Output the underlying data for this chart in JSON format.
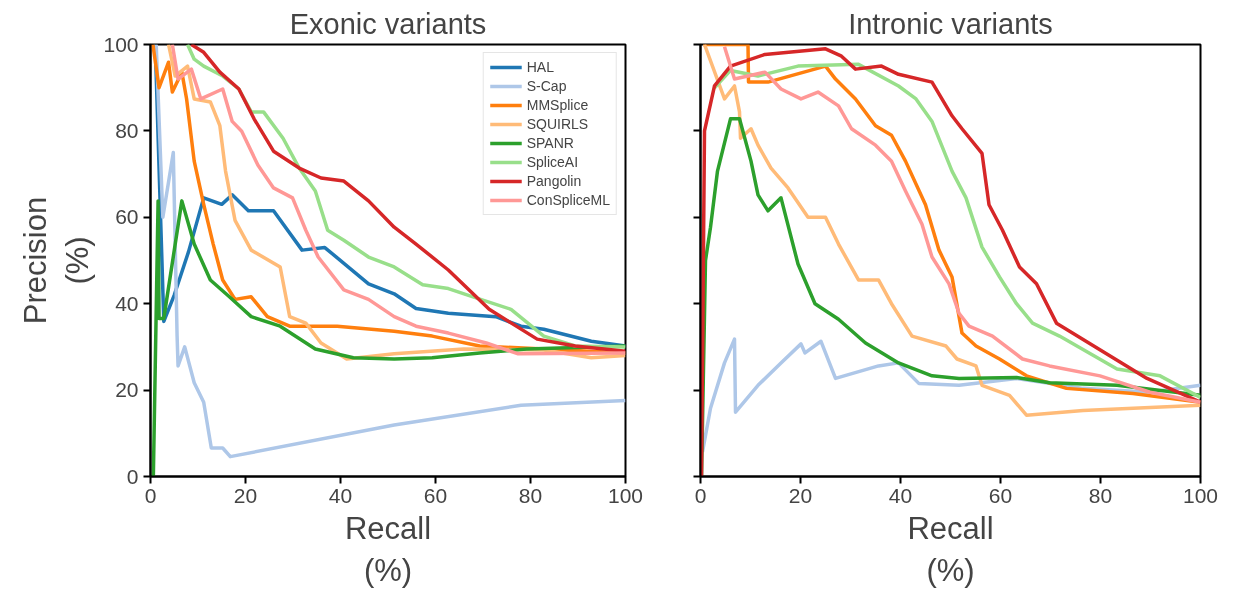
{
  "chart_data": [
    {
      "type": "line",
      "title": "Exonic variants",
      "xlabel": "Recall\n(%)",
      "ylabel": "Precision\n(%)",
      "xlim": [
        0,
        100
      ],
      "ylim": [
        0,
        100
      ],
      "xticks": [
        0,
        20,
        40,
        60,
        80,
        100
      ],
      "yticks": [
        0,
        20,
        40,
        60,
        80,
        100
      ],
      "grid": false,
      "legend": "top right",
      "series": [
        {
          "name": "HAL",
          "color": "#1f77b4",
          "x": [
            1,
            2.8,
            5,
            8,
            11.2,
            15,
            17.2,
            20.6,
            25.9,
            31.9,
            36.7,
            45.9,
            51.3,
            55.9,
            62.7,
            72.7,
            78,
            82.8,
            92.8,
            100
          ],
          "values": [
            100,
            35.9,
            42,
            52,
            64.5,
            63,
            65.2,
            61.5,
            61.5,
            52.4,
            53,
            44.6,
            42.3,
            38.9,
            37.8,
            37,
            34.8,
            34.1,
            31.3,
            30.2
          ]
        },
        {
          "name": "S-Cap",
          "color": "#aec7e8",
          "x": [
            1.2,
            2.6,
            4.8,
            5.6,
            5.8,
            7.2,
            9.2,
            11.2,
            12.8,
            15.2,
            16.8,
            51.3,
            78,
            100
          ],
          "values": [
            100,
            60,
            75,
            32.5,
            25.6,
            30,
            21.7,
            17.2,
            6.6,
            6.6,
            4.6,
            11.9,
            16.5,
            17.6
          ]
        },
        {
          "name": "MMSplice",
          "color": "#ff7f0e",
          "x": [
            0.5,
            1.8,
            3.8,
            4.6,
            6.6,
            7.6,
            9.2,
            11.2,
            13.2,
            15.2,
            17.8,
            21.2,
            24.6,
            29.3,
            39.3,
            51.3,
            59.3,
            69.3,
            82.8,
            100
          ],
          "values": [
            100,
            90,
            95.9,
            89,
            93.6,
            87.4,
            73,
            63,
            53.8,
            45.5,
            41,
            41.6,
            37,
            34.8,
            34.8,
            33.6,
            32.5,
            30.2,
            29.5,
            28.6
          ]
        },
        {
          "name": "SQUIRLS",
          "color": "#ffbb78",
          "x": [
            3.8,
            5.2,
            7.8,
            9.2,
            12.6,
            14.6,
            15.8,
            17.8,
            21.2,
            27.3,
            29.3,
            32.7,
            35.9,
            41.3,
            51.3,
            65.9,
            82.8,
            92.8,
            100
          ],
          "values": [
            100,
            92.7,
            95,
            87.4,
            86.7,
            81.2,
            70.7,
            59.3,
            52.4,
            48.5,
            37,
            35.5,
            30.9,
            27.2,
            28.4,
            29.5,
            29.3,
            27.5,
            28
          ]
        },
        {
          "name": "SPANR",
          "color": "#2ca02c",
          "x": [
            0.6,
            1.6,
            1.8,
            2.8,
            6.6,
            9.2,
            12.6,
            16.6,
            21.2,
            27.3,
            34.7,
            42.7,
            51.3,
            59.3,
            69.3,
            79.2,
            100
          ],
          "values": [
            0,
            63.8,
            36.6,
            36.6,
            63.8,
            53.8,
            45.5,
            41.6,
            37,
            34.8,
            29.5,
            27.5,
            27.2,
            27.5,
            28.6,
            29.5,
            30.2
          ]
        },
        {
          "name": "SpliceAI",
          "color": "#98df8a",
          "x": [
            7.8,
            9.2,
            11.2,
            15.2,
            18.6,
            21.2,
            23.8,
            27.9,
            31.3,
            34.7,
            37.3,
            40.7,
            45.9,
            51.3,
            57.3,
            62.7,
            67.9,
            75.9,
            82.8,
            89.4,
            100
          ],
          "values": [
            100,
            96.6,
            95,
            92.7,
            89.7,
            84.4,
            84.4,
            78.3,
            71.4,
            66.1,
            57,
            54.7,
            50.8,
            48.5,
            44.4,
            43.5,
            41.6,
            38.7,
            32.5,
            30.2,
            30
          ]
        },
        {
          "name": "Pangolin",
          "color": "#d62728",
          "x": [
            8.6,
            11.2,
            14.6,
            18.6,
            21.8,
            25.9,
            31.3,
            35.9,
            40.7,
            45.9,
            51.3,
            55.9,
            62.7,
            71.3,
            81.4,
            89.4,
            100
          ],
          "values": [
            100,
            98.2,
            93.6,
            89.7,
            82.8,
            75.3,
            71.4,
            69.1,
            68.4,
            63.8,
            57.7,
            53.8,
            47.8,
            38.7,
            31.8,
            30.2,
            29
          ]
        },
        {
          "name": "ConSpliceML",
          "color": "#ff9896",
          "x": [
            4.6,
            5.8,
            8.6,
            10.6,
            15.2,
            17.2,
            19.2,
            22.6,
            25.9,
            29.9,
            32.7,
            35.3,
            40.7,
            45.9,
            51.3,
            55.9,
            62.7,
            70.7,
            77.4,
            100
          ],
          "values": [
            100,
            92,
            94.3,
            87.4,
            89.7,
            82.2,
            79.9,
            72.1,
            66.8,
            64.5,
            57,
            50.8,
            43.2,
            41,
            37,
            34.8,
            33.2,
            30.9,
            28.4,
            28.6
          ]
        }
      ]
    },
    {
      "type": "line",
      "title": "Intronic variants",
      "xlabel": "Recall\n(%)",
      "xlim": [
        0,
        100
      ],
      "ylim": [
        0,
        100
      ],
      "xticks": [
        0,
        20,
        40,
        60,
        80,
        100
      ],
      "yticks": [
        0,
        20,
        40,
        60,
        80,
        100
      ],
      "grid": false,
      "tick_labels": "x",
      "series": [
        {
          "color": "#aec7e8",
          "x": [
            0.4,
            2,
            4.8,
            6.8,
            7,
            11.5,
            16.1,
            20.1,
            20.9,
            24.1,
            27,
            35.6,
            39.6,
            43.7,
            51.7,
            63.2,
            76.5,
            89.9,
            100
          ],
          "values": [
            5.7,
            15.8,
            26.3,
            31.8,
            14.9,
            21.1,
            26.3,
            30.7,
            28.6,
            31.3,
            22.7,
            25.6,
            26.3,
            21.5,
            21.1,
            22.7,
            20.4,
            19.5,
            21.1
          ]
        },
        {
          "color": "#ff7f0e",
          "x": [
            0.5,
            9.5,
            9.6,
            13.5,
            25,
            27,
            31,
            35,
            38.2,
            41,
            45,
            47.7,
            50.3,
            52.3,
            55.1,
            59.8,
            65.2,
            73.2,
            86.5,
            100
          ],
          "values": [
            100,
            100,
            91.3,
            91.3,
            95,
            92,
            87.4,
            81.2,
            79,
            73,
            62.9,
            52.4,
            46.2,
            33.2,
            30.2,
            27.2,
            23.3,
            20.4,
            19.2,
            17.2
          ]
        },
        {
          "color": "#ffbb78",
          "x": [
            0.8,
            4.8,
            6.8,
            7.8,
            8,
            10.1,
            11.5,
            14.1,
            17.5,
            21.5,
            25,
            27.6,
            31.6,
            35.6,
            38.2,
            42.3,
            49.1,
            51.3,
            55.1,
            56.3,
            61.8,
            65.2,
            76.5,
            100
          ],
          "values": [
            100,
            87.4,
            90.4,
            84.4,
            78.3,
            80.5,
            76.7,
            71.4,
            66.8,
            60,
            60,
            53.8,
            45.5,
            45.5,
            40,
            32.5,
            30.2,
            27.2,
            25.6,
            21.1,
            18.8,
            14.2,
            15.3,
            16.5
          ]
        },
        {
          "color": "#2ca02c",
          "x": [
            0.2,
            1,
            2,
            3.4,
            6,
            7.8,
            10.1,
            11.5,
            13.5,
            16.1,
            19.5,
            22.9,
            27.6,
            33,
            39.6,
            46.3,
            51.7,
            63.2,
            69.8,
            83.3,
            100
          ],
          "values": [
            0,
            50,
            57.7,
            70.7,
            82.8,
            82.8,
            73,
            65.2,
            61.5,
            64.5,
            49.2,
            40,
            36.4,
            30.9,
            26.3,
            23.3,
            22.7,
            22.9,
            21.7,
            21.1,
            18.8
          ]
        },
        {
          "color": "#98df8a",
          "x": [
            2.8,
            6,
            11.5,
            19.5,
            31.6,
            39.6,
            43.1,
            46.3,
            50.3,
            53.1,
            56.3,
            59.8,
            63.2,
            66.4,
            71.8,
            83.3,
            91.9,
            100
          ],
          "values": [
            90,
            94,
            92.7,
            95,
            95.4,
            90.4,
            87.4,
            82.2,
            70.7,
            64.5,
            53.1,
            46.2,
            40,
            35.5,
            32.5,
            24.9,
            23.3,
            18.3
          ]
        },
        {
          "color": "#d62728",
          "x": [
            0.2,
            0.8,
            2.8,
            6,
            12.9,
            25,
            28.2,
            31,
            36.2,
            39.6,
            46.3,
            50.3,
            52.3,
            56.3,
            57.7,
            60.4,
            63.8,
            67.2,
            71.2,
            89.3,
            100
          ],
          "values": [
            0,
            80,
            90.4,
            95,
            97.7,
            99,
            97.3,
            94.3,
            95,
            93.1,
            91.3,
            83.5,
            80.5,
            74.8,
            62.9,
            57,
            48.5,
            44.6,
            35.5,
            22.7,
            17.2
          ]
        },
        {
          "color": "#ff9896",
          "x": [
            4.8,
            6.8,
            12.9,
            16.1,
            20.1,
            23.5,
            27.6,
            30.2,
            35,
            38.2,
            41,
            44.3,
            46.3,
            49.7,
            51.7,
            53.7,
            58.4,
            64.4,
            69.8,
            79.9,
            89.9,
            100
          ],
          "values": [
            99.5,
            92,
            93.6,
            89.7,
            87.4,
            89,
            85.8,
            80.5,
            76.7,
            73,
            66.1,
            58.4,
            50.8,
            44.6,
            37.8,
            34.8,
            32.5,
            27.2,
            25.6,
            23.3,
            19.5,
            17.2
          ]
        }
      ]
    }
  ]
}
